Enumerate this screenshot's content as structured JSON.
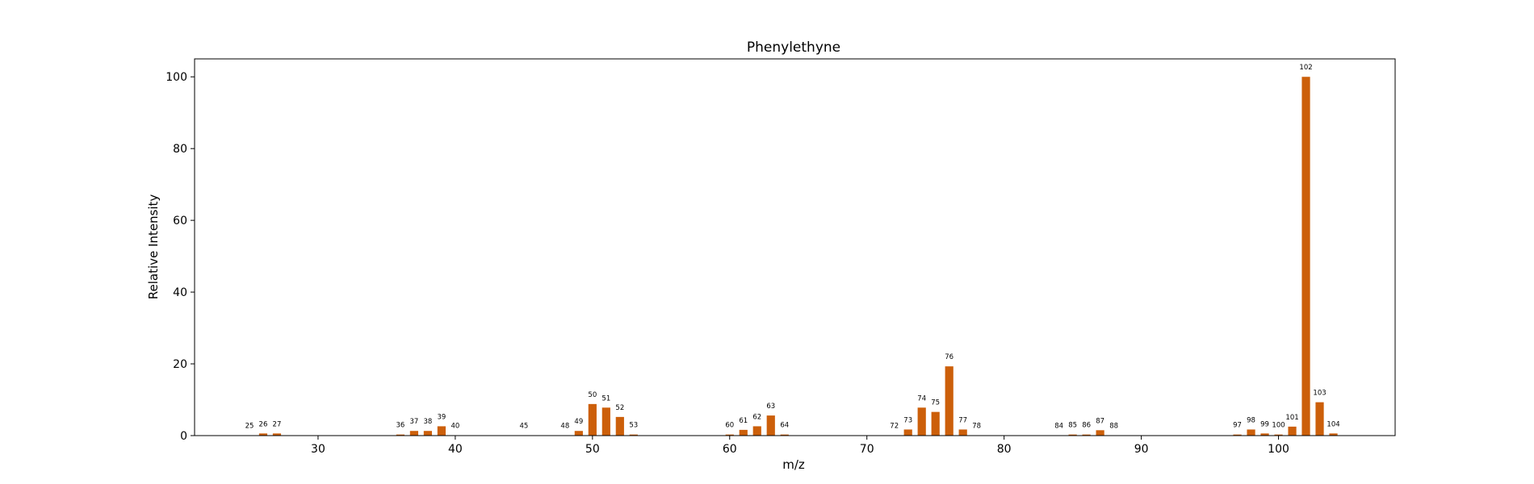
{
  "chart_data": {
    "type": "bar",
    "title": "Phenylethyne",
    "xlabel": "m/z",
    "ylabel": "Relative Intensity",
    "xlim": [
      21,
      108.5
    ],
    "ylim": [
      0,
      105
    ],
    "xticks": [
      30,
      40,
      50,
      60,
      70,
      80,
      90,
      100
    ],
    "yticks": [
      0,
      20,
      40,
      60,
      80,
      100
    ],
    "bar_color": "#cc5f0a",
    "grid": false,
    "series": [
      {
        "x": [
          25,
          26,
          27,
          36,
          37,
          38,
          39,
          40,
          45,
          48,
          49,
          50,
          51,
          52,
          53,
          60,
          61,
          62,
          63,
          64,
          72,
          73,
          74,
          75,
          76,
          77,
          78,
          84,
          85,
          86,
          87,
          88,
          97,
          98,
          99,
          100,
          101,
          102,
          103,
          104
        ],
        "values": [
          0.1,
          0.6,
          0.6,
          0.3,
          1.3,
          1.3,
          2.6,
          0.1,
          0.1,
          0.1,
          1.3,
          8.8,
          7.8,
          5.2,
          0.3,
          0.3,
          1.6,
          2.6,
          5.6,
          0.3,
          0.1,
          1.7,
          7.8,
          6.6,
          19.3,
          1.7,
          0.1,
          0.1,
          0.3,
          0.3,
          1.5,
          0.1,
          0.3,
          1.7,
          0.6,
          0.3,
          2.5,
          100,
          9.3,
          0.6
        ]
      }
    ]
  }
}
